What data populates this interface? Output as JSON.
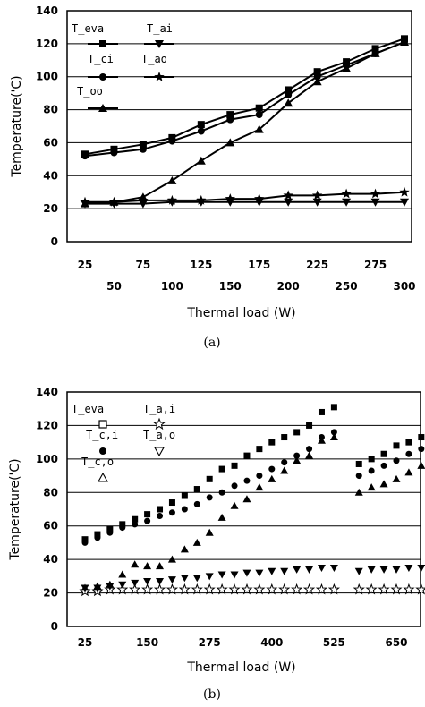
{
  "chart_data": [
    {
      "panel": "(a)",
      "type": "line",
      "xlabel": "Thermal load (W)",
      "ylabel": "Temperature('C)",
      "ylim": [
        0,
        140
      ],
      "yticks": [
        0,
        20,
        40,
        60,
        80,
        100,
        120,
        140
      ],
      "x_tick_labels_upper": [
        "25",
        "75",
        "125",
        "175",
        "225",
        "275"
      ],
      "x_tick_labels_lower": [
        "50",
        "100",
        "150",
        "200",
        "250",
        "300"
      ],
      "grid": "horizontal",
      "legend_placement": "top-left",
      "x": [
        25,
        50,
        75,
        100,
        125,
        150,
        175,
        200,
        225,
        250,
        275,
        300
      ],
      "series": [
        {
          "name": "T_eva",
          "marker": "square",
          "values": [
            53,
            56,
            59,
            63,
            71,
            77,
            81,
            92,
            103,
            109,
            117,
            123
          ]
        },
        {
          "name": "T_ci",
          "marker": "circle",
          "values": [
            52,
            54,
            56,
            61,
            67,
            74,
            77,
            89,
            100,
            107,
            114,
            121
          ]
        },
        {
          "name": "T_oo",
          "marker": "triangle",
          "values": [
            23,
            24,
            27,
            37,
            49,
            60,
            68,
            84,
            97,
            105,
            114,
            121
          ]
        },
        {
          "name": "T_ai",
          "marker": "triangle-down",
          "values": [
            23,
            23,
            23,
            24,
            24,
            24,
            24,
            24,
            24,
            24,
            24,
            24
          ]
        },
        {
          "name": "T_ao",
          "marker": "star",
          "values": [
            24,
            24,
            25,
            25,
            25,
            26,
            26,
            28,
            28,
            29,
            29,
            30
          ]
        }
      ]
    },
    {
      "panel": "(b)",
      "type": "scatter",
      "xlabel": "Thermal load (W)",
      "ylabel": "Temperature('C)",
      "ylim": [
        0,
        140
      ],
      "yticks": [
        0,
        20,
        40,
        60,
        80,
        100,
        120,
        140
      ],
      "xlim": [
        0,
        725
      ],
      "xticks": [
        25,
        150,
        275,
        400,
        525,
        650
      ],
      "grid": "horizontal",
      "legend_placement": "top-left",
      "series": [
        {
          "name": "T_eva",
          "marker": "square",
          "x": [
            25,
            50,
            75,
            100,
            125,
            150,
            175,
            200,
            225,
            250,
            275,
            300,
            325,
            350,
            375,
            400,
            425,
            450,
            475,
            500,
            525,
            575,
            600,
            625,
            650,
            675,
            700
          ],
          "values": [
            52,
            55,
            58,
            61,
            64,
            67,
            70,
            74,
            78,
            82,
            88,
            94,
            96,
            102,
            106,
            110,
            113,
            116,
            120,
            128,
            131,
            97,
            100,
            103,
            108,
            110,
            113
          ]
        },
        {
          "name": "T_c,i",
          "marker": "circle",
          "x": [
            25,
            50,
            75,
            100,
            125,
            150,
            175,
            200,
            225,
            250,
            275,
            300,
            325,
            350,
            375,
            400,
            425,
            450,
            475,
            500,
            525,
            575,
            600,
            625,
            650,
            675,
            700
          ],
          "values": [
            50,
            53,
            56,
            59,
            61,
            63,
            66,
            68,
            70,
            73,
            77,
            80,
            84,
            87,
            90,
            94,
            98,
            102,
            106,
            113,
            116,
            90,
            93,
            96,
            99,
            103,
            106
          ]
        },
        {
          "name": "T_c,o",
          "marker": "triangle",
          "x": [
            25,
            50,
            75,
            100,
            125,
            150,
            175,
            200,
            225,
            250,
            275,
            300,
            325,
            350,
            375,
            400,
            425,
            450,
            475,
            500,
            525,
            575,
            600,
            625,
            650,
            675,
            700
          ],
          "values": [
            23,
            24,
            25,
            31,
            37,
            36,
            36,
            40,
            46,
            50,
            56,
            65,
            72,
            76,
            83,
            88,
            93,
            99,
            102,
            111,
            113,
            80,
            83,
            85,
            88,
            92,
            96
          ]
        },
        {
          "name": "T_a,i",
          "marker": "star-open",
          "x": [
            25,
            50,
            75,
            100,
            125,
            150,
            175,
            200,
            225,
            250,
            275,
            300,
            325,
            350,
            375,
            400,
            425,
            450,
            475,
            500,
            525,
            575,
            600,
            625,
            650,
            675,
            700
          ],
          "values": [
            21,
            21,
            22,
            22,
            22,
            22,
            22,
            22,
            22,
            22,
            22,
            22,
            22,
            22,
            22,
            22,
            22,
            22,
            22,
            22,
            22,
            22,
            22,
            22,
            22,
            22,
            22
          ]
        },
        {
          "name": "T_a,o",
          "marker": "triangle-down",
          "x": [
            25,
            50,
            75,
            100,
            125,
            150,
            175,
            200,
            225,
            250,
            275,
            300,
            325,
            350,
            375,
            400,
            425,
            450,
            475,
            500,
            525,
            575,
            600,
            625,
            650,
            675,
            700
          ],
          "values": [
            23,
            23,
            24,
            25,
            26,
            27,
            27,
            28,
            29,
            29,
            30,
            31,
            31,
            32,
            32,
            33,
            33,
            34,
            34,
            35,
            35,
            33,
            34,
            34,
            34,
            35,
            35
          ]
        }
      ]
    }
  ],
  "captions": [
    "(a)",
    "(b)"
  ]
}
